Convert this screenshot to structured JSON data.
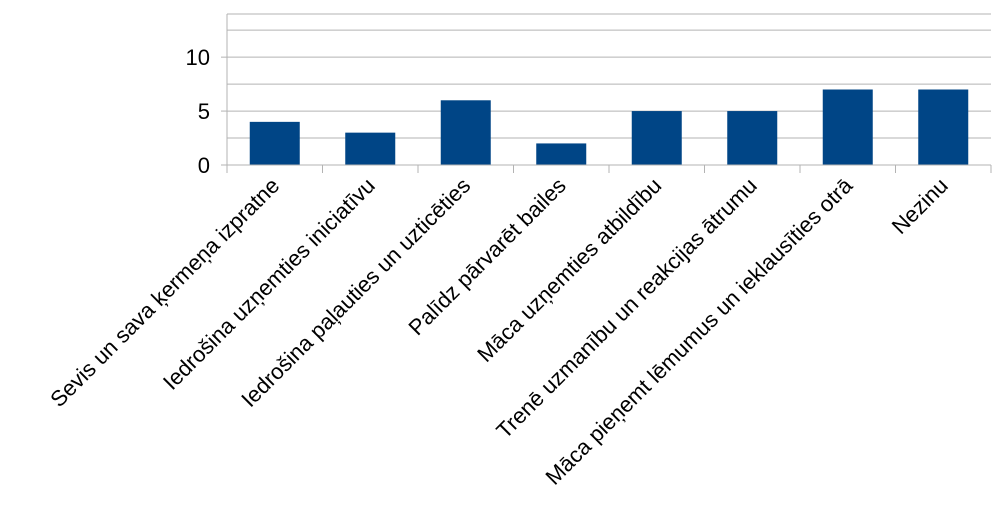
{
  "chart_data": {
    "type": "bar",
    "title": "",
    "xlabel": "",
    "ylabel": "",
    "categories": [
      "Sevis un sava ķermeņa izpratne",
      "Iedrošina uzņemties iniciatīvu",
      "Iedrošina paļauties un uzticēties",
      "Palīdz pārvarēt bailes",
      "Māca uzņemties atbildību",
      "Trenē uzmanību un reakcijas ātrumu",
      "Māca pieņemt lēmumus un ieklausīties otrā",
      "Nezinu"
    ],
    "series": [
      {
        "values": [
          4,
          3,
          6,
          2,
          5,
          5,
          7,
          7
        ]
      }
    ],
    "ylim": [
      0,
      14
    ],
    "yticks": [
      0,
      5,
      10
    ],
    "grid": true,
    "legend": "none",
    "bar_color": "#004586",
    "grid_color": "#b3b3b3",
    "axis_color": "#b3b3b3"
  }
}
